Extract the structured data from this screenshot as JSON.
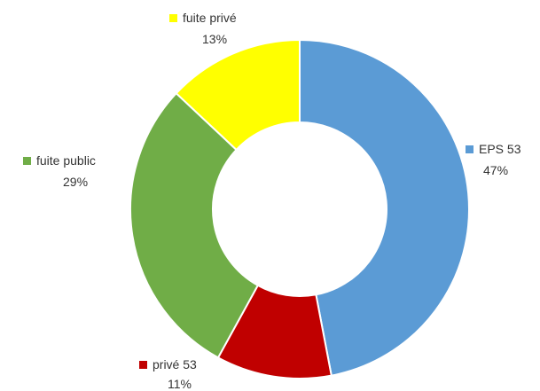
{
  "chart_data": {
    "type": "pie",
    "donut": true,
    "slices": [
      {
        "label": "EPS 53",
        "value": 47,
        "percent_text": "47%",
        "color": "#5b9bd5"
      },
      {
        "label": "privé 53",
        "value": 11,
        "percent_text": "11%",
        "color": "#c00000"
      },
      {
        "label": "fuite public",
        "value": 29,
        "percent_text": "29%",
        "color": "#70ad47"
      },
      {
        "label": "fuite privé",
        "value": 13,
        "percent_text": "13%",
        "color": "#ffff00"
      }
    ]
  }
}
